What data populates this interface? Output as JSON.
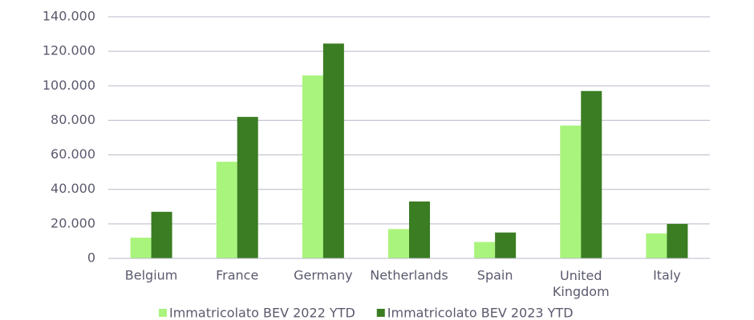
{
  "chart_data": {
    "type": "bar",
    "categories": [
      "Belgium",
      "France",
      "Germany",
      "Netherlands",
      "Spain",
      "United Kingdom",
      "Italy"
    ],
    "series": [
      {
        "name": "Immatricolato BEV 2022 YTD",
        "color": "#a9f47c",
        "values": [
          12000,
          56000,
          106000,
          17000,
          9500,
          77000,
          14500
        ]
      },
      {
        "name": "Immatricolato BEV 2023 YTD",
        "color": "#3a7d22",
        "values": [
          27000,
          82000,
          124500,
          33000,
          15000,
          97000,
          20000
        ]
      }
    ],
    "ylim": [
      0,
      140000
    ],
    "yticks": [
      0,
      {
        "value": 20000,
        "label": "20.000"
      },
      {
        "value": 40000,
        "label": "40.000"
      },
      {
        "value": 60000,
        "label": "60.000"
      },
      {
        "value": 80000,
        "label": "80.000"
      },
      {
        "value": 100000,
        "label": "100.000"
      },
      {
        "value": 120000,
        "label": "120.000"
      },
      {
        "value": 140000,
        "label": "140.000"
      }
    ],
    "grid": true,
    "legend": "bottom"
  }
}
